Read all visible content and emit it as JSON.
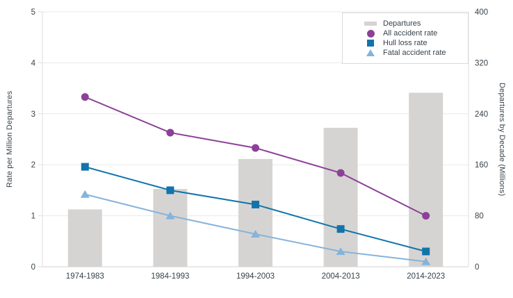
{
  "chart_data": {
    "type": "bar+line",
    "categories": [
      "1974-1983",
      "1984-1993",
      "1994-2003",
      "2004-2013",
      "2014-2023"
    ],
    "bar_series": {
      "name": "Departures",
      "axis": "right",
      "color": "#d6d4d2",
      "values": [
        90,
        122,
        169,
        218,
        273
      ]
    },
    "line_series": [
      {
        "name": "All accident rate",
        "axis": "left",
        "marker": "circle",
        "color": "#8c4097",
        "values": [
          3.33,
          2.63,
          2.33,
          1.84,
          1.0
        ]
      },
      {
        "name": "Hull loss rate",
        "axis": "left",
        "marker": "square",
        "color": "#1274aa",
        "values": [
          1.96,
          1.5,
          1.22,
          0.74,
          0.3
        ]
      },
      {
        "name": "Fatal accident rate",
        "axis": "left",
        "marker": "triangle",
        "color": "#85b3dc",
        "values": [
          1.42,
          1.0,
          0.64,
          0.3,
          0.1
        ]
      }
    ],
    "ylabel_left": "Rate per Million Departures",
    "ylabel_right": "Departures by Decade (Millions)",
    "ylim_left": [
      0,
      5
    ],
    "ylim_right": [
      0,
      400
    ],
    "yleft_ticks": [
      0,
      1,
      2,
      3,
      4,
      5
    ],
    "yright_ticks": [
      0,
      80,
      160,
      240,
      320,
      400
    ],
    "grid": true,
    "legend_position": "top-right",
    "colors": {
      "text": "#37424a",
      "grid": "#eaeaea",
      "axis_border": "#dedede",
      "baseline": "#d0d0d0",
      "legend_border": "#d9d9d9",
      "background": "#ffffff"
    }
  }
}
